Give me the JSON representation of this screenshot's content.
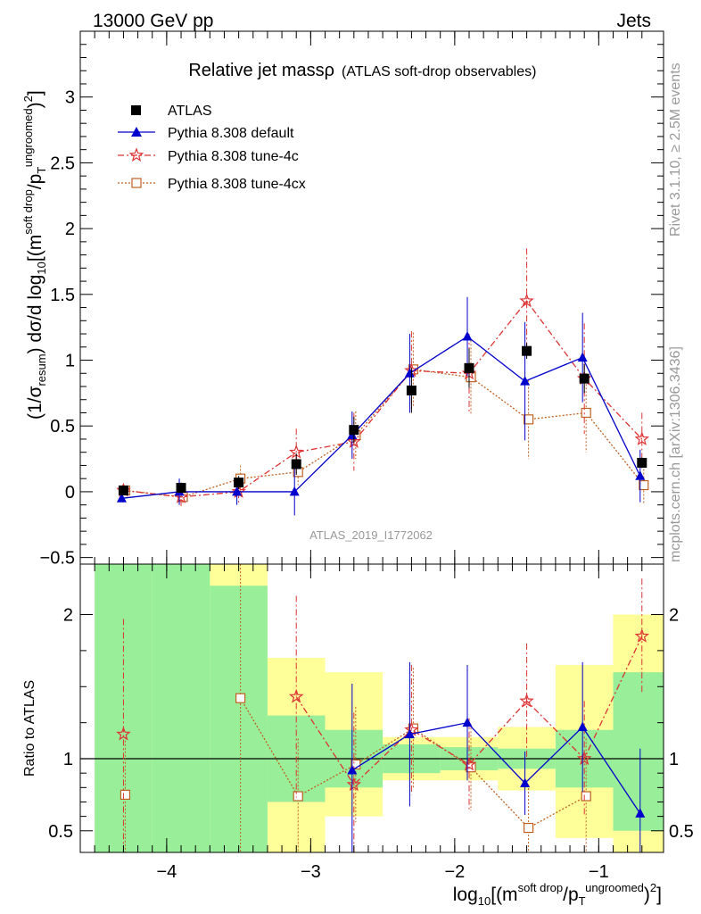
{
  "header": {
    "left": "13000 GeV pp",
    "right": "Jets"
  },
  "side_text": {
    "rivet": "Rivet 3.1.10, ≥ 2.5M events",
    "mcplots": "mcplots.cern.ch [arXiv:1306.3436]"
  },
  "colors": {
    "atlas": "#000000",
    "default": "#0000cc",
    "tune4c": "#dd3333",
    "tune4cx": "#c06020",
    "band_inner": "#99ee99",
    "band_outer": "#ffff99"
  },
  "chart_data": [
    {
      "type": "scatter",
      "title": "Relative jet massρ",
      "subtitle": "(ATLAS soft-drop observables)",
      "watermark": "ATLAS_2019_I1772062",
      "ylabel": {
        "prefix": "(1/σ",
        "sub1": "resum",
        "mid": ") dσ/d log",
        "sub2": "10",
        "post": "[(m",
        "sup1": "soft drop",
        "slash": "/p",
        "sub3": "T",
        "sup2": "ungroomed",
        "end": ")",
        "sup3": "2",
        "close": "]"
      },
      "xlim": [
        -4.6,
        -0.55
      ],
      "ylim": [
        -0.55,
        3.5
      ],
      "yticks": [
        "−0.5",
        "0",
        "0.5",
        "1",
        "1.5",
        "2",
        "2.5",
        "3"
      ],
      "ytick_values": [
        -0.5,
        0,
        0.5,
        1,
        1.5,
        2,
        2.5,
        3
      ],
      "x": [
        -4.3,
        -3.9,
        -3.5,
        -3.1,
        -2.7,
        -2.3,
        -1.9,
        -1.5,
        -1.1,
        -0.7
      ],
      "xbins": [
        -4.5,
        -4.1,
        -3.7,
        -3.3,
        -2.9,
        -2.5,
        -2.1,
        -1.7,
        -1.3,
        -0.9,
        -0.5
      ],
      "legend": [
        "ATLAS",
        "Pythia 8.308 default",
        "Pythia 8.308 tune-4c",
        "Pythia 8.308 tune-4cx"
      ],
      "series": [
        {
          "name": "ATLAS",
          "values": [
            0.01,
            0.03,
            0.07,
            0.21,
            0.47,
            0.77,
            0.94,
            1.07,
            0.86,
            0.22
          ],
          "err": [
            0.03,
            0.04,
            0.05,
            0.08,
            0.1,
            0.17,
            0.15,
            0.06,
            0.11,
            0.04
          ]
        },
        {
          "name": "Pythia 8.308 default",
          "values": [
            -0.05,
            0,
            0,
            0,
            0.43,
            0.9,
            1.18,
            0.84,
            1.02,
            0.12
          ],
          "err": [
            0.02,
            0.1,
            0.1,
            0.18,
            0.18,
            0.3,
            0.3,
            0.45,
            0.34,
            0.2
          ]
        },
        {
          "name": "Pythia 8.308 tune-4c",
          "values": [
            0.01,
            -0.04,
            0,
            0.3,
            0.38,
            0.92,
            0.9,
            1.45,
            0.86,
            0.4
          ],
          "err": [
            0.02,
            0.08,
            0.1,
            0.18,
            0.22,
            0.3,
            0.3,
            0.4,
            0.42,
            0.2
          ]
        },
        {
          "name": "Pythia 8.308 tune-4cx",
          "values": [
            0.01,
            -0.04,
            0.1,
            0.15,
            0.43,
            0.93,
            0.87,
            0.55,
            0.6,
            0.05
          ],
          "err": [
            0.02,
            0.05,
            0.1,
            0.1,
            0.18,
            0.28,
            0.28,
            0.3,
            0.3,
            0.15
          ]
        }
      ]
    },
    {
      "type": "scatter",
      "ylabel": "Ratio to ATLAS",
      "xlabel": {
        "prefix": "log",
        "sub1": "10",
        "post": "[(m",
        "sup1": "soft drop",
        "slash": "/p",
        "sub2": "T",
        "sup2": "ungroomed",
        "end": ")",
        "sup3": "2",
        "close": "]"
      },
      "xlim": [
        -4.6,
        -0.55
      ],
      "ylim": [
        0.35,
        2.35
      ],
      "xticks": [
        "−4",
        "−3",
        "−2",
        "−1"
      ],
      "xtick_values": [
        -4,
        -3,
        -2,
        -1
      ],
      "yticks": [
        "0.5",
        "1",
        "2"
      ],
      "ytick_values": [
        0.5,
        1,
        2
      ],
      "band_inner": [
        [
          0.3,
          2.4
        ],
        [
          0.3,
          2.4
        ],
        [
          0.3,
          2.2
        ],
        [
          0.7,
          1.3
        ],
        [
          0.8,
          1.2
        ],
        [
          0.9,
          1.1
        ],
        [
          0.92,
          1.08
        ],
        [
          0.93,
          1.07
        ],
        [
          0.8,
          1.2
        ],
        [
          0.5,
          1.6
        ]
      ],
      "band_outer": [
        [
          0.3,
          2.4
        ],
        [
          0.3,
          2.4
        ],
        [
          0.3,
          2.4
        ],
        [
          0.3,
          1.7
        ],
        [
          0.6,
          1.6
        ],
        [
          0.85,
          1.15
        ],
        [
          0.85,
          1.15
        ],
        [
          0.78,
          1.22
        ],
        [
          0.45,
          1.65
        ],
        [
          0.3,
          2
        ]
      ],
      "series": [
        {
          "name": "Pythia 8.308 default",
          "values": [
            null,
            null,
            null,
            null,
            0.92,
            1.17,
            1.25,
            0.83,
            1.22,
            0.62
          ],
          "err": [
            0,
            0,
            0,
            0,
            0.6,
            0.5,
            0.4,
            0.22,
            0.45,
            0.45
          ]
        },
        {
          "name": "Pythia 8.308 tune-4c",
          "values": [
            1.17,
            null,
            null,
            1.43,
            0.82,
            1.2,
            0.96,
            1.4,
            1,
            1.85
          ],
          "err": [
            0.8,
            0,
            0,
            0.7,
            0.5,
            0.45,
            0.32,
            0.4,
            0.4,
            0.4
          ]
        },
        {
          "name": "Pythia 8.308 tune-4cx",
          "values": [
            0.75,
            null,
            1.42,
            0.74,
            0.96,
            1.21,
            0.94,
            0.52,
            0.74,
            null
          ],
          "err": [
            0.4,
            0,
            1.2,
            0.4,
            0.4,
            0.42,
            0.3,
            0.3,
            0.4,
            0
          ]
        }
      ]
    }
  ]
}
